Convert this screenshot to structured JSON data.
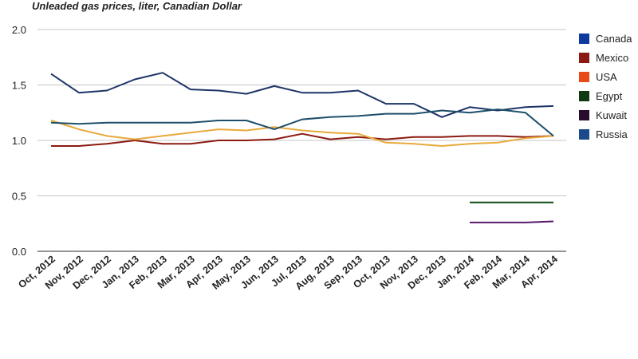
{
  "chart_data": {
    "type": "line",
    "title": "Unleaded gas prices, liter, Canadian Dollar",
    "xlabel": "",
    "ylabel": "",
    "ylim": [
      0,
      2
    ],
    "yticks": [
      "0.0",
      "0.5",
      "1.0",
      "1.5",
      "2.0"
    ],
    "grid": true,
    "legend_position": "right",
    "categories": [
      "Oct, 2012",
      "Nov, 2012",
      "Dec, 2012",
      "Jan, 2013",
      "Feb, 2013",
      "Mar, 2013",
      "Apr, 2013",
      "May, 2013",
      "Jun, 2013",
      "Jul, 2013",
      "Aug, 2013",
      "Sep, 2013",
      "Oct, 2013",
      "Nov, 2013",
      "Dec, 2013",
      "Jan, 2014",
      "Feb, 2014",
      "Mar, 2014",
      "Apr, 2014"
    ],
    "series": [
      {
        "name": "Canada",
        "color": "#1c3466",
        "values": [
          1.6,
          1.43,
          1.45,
          1.55,
          1.61,
          1.46,
          1.45,
          1.42,
          1.49,
          1.43,
          1.43,
          1.45,
          1.33,
          1.33,
          1.21,
          1.3,
          1.27,
          1.3,
          1.31
        ]
      },
      {
        "name": "Mexico",
        "color": "#8b1a10",
        "values": [
          0.95,
          0.95,
          0.97,
          1.0,
          0.97,
          0.97,
          1.0,
          1.0,
          1.01,
          1.06,
          1.01,
          1.03,
          1.01,
          1.03,
          1.03,
          1.04,
          1.04,
          1.03,
          1.04
        ]
      },
      {
        "name": "USA",
        "color": "#e8a93a",
        "values": [
          1.18,
          1.1,
          1.04,
          1.01,
          1.04,
          1.07,
          1.1,
          1.09,
          1.12,
          1.09,
          1.07,
          1.06,
          0.98,
          0.97,
          0.95,
          0.97,
          0.98,
          1.02,
          1.04
        ]
      },
      {
        "name": "Egypt",
        "color": "#0f4a12",
        "values": [
          null,
          null,
          null,
          null,
          null,
          null,
          null,
          null,
          null,
          null,
          null,
          null,
          null,
          null,
          null,
          0.44,
          0.44,
          0.44,
          0.44
        ]
      },
      {
        "name": "Kuwait",
        "color": "#5a1a6e",
        "values": [
          null,
          null,
          null,
          null,
          null,
          null,
          null,
          null,
          null,
          null,
          null,
          null,
          null,
          null,
          null,
          0.26,
          0.26,
          0.26,
          0.27
        ]
      },
      {
        "name": "Russia",
        "color": "#1d4f6b",
        "values": [
          1.16,
          1.15,
          1.16,
          1.16,
          1.16,
          1.16,
          1.18,
          1.18,
          1.1,
          1.19,
          1.21,
          1.22,
          1.24,
          1.24,
          1.27,
          1.25,
          1.28,
          1.25,
          1.04
        ]
      }
    ],
    "legend_swatch_colors": {
      "Canada": "#0e3aa0",
      "Mexico": "#8b1a10",
      "USA": "#e84a18",
      "Egypt": "#0f3a10",
      "Kuwait": "#2a0a2e",
      "Russia": "#1a4a8a"
    }
  }
}
